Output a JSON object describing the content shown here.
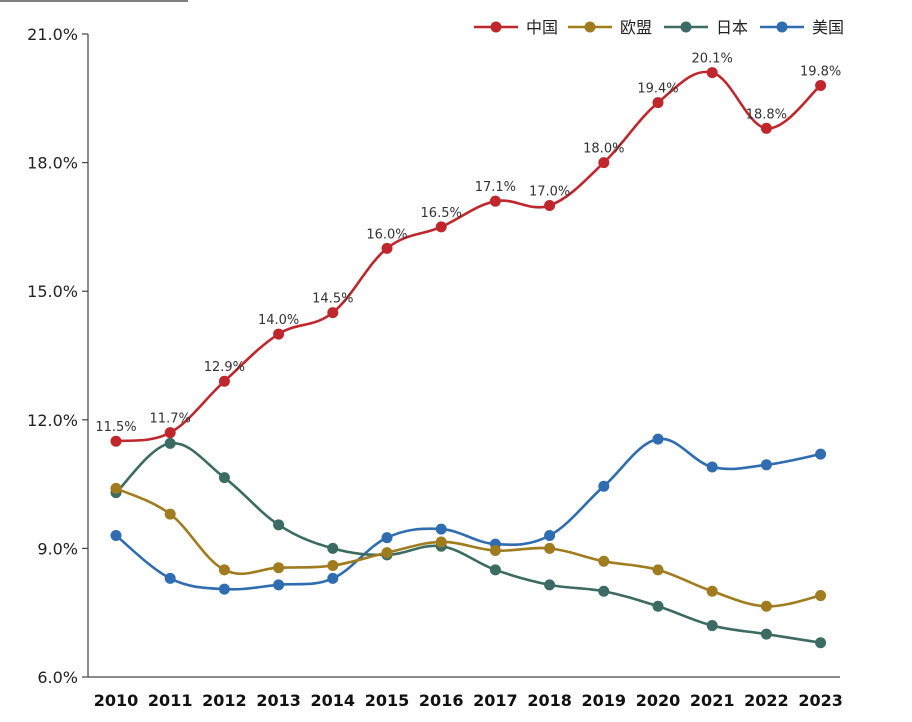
{
  "chart_data": {
    "type": "line",
    "title": "",
    "xlabel": "",
    "ylabel": "",
    "x": [
      "2010",
      "2011",
      "2012",
      "2013",
      "2014",
      "2015",
      "2016",
      "2017",
      "2018",
      "2019",
      "2020",
      "2021",
      "2022",
      "2023"
    ],
    "ylim": [
      6.0,
      21.0
    ],
    "y_ticks": [
      "6.0%",
      "9.0%",
      "12.0%",
      "15.0%",
      "18.0%",
      "21.0%"
    ],
    "y_tick_values": [
      6,
      9,
      12,
      15,
      18,
      21
    ],
    "grid": false,
    "legend_position": "top-right",
    "series": [
      {
        "name": "中国",
        "color": "#c0272d",
        "values": [
          11.5,
          11.7,
          12.9,
          14.0,
          14.5,
          16.0,
          16.5,
          17.1,
          17.0,
          18.0,
          19.4,
          20.1,
          18.8,
          19.8
        ],
        "labels": [
          "11.5%",
          "11.7%",
          "12.9%",
          "14.0%",
          "14.5%",
          "16.0%",
          "16.5%",
          "17.1%",
          "17.0%",
          "18.0%",
          "19.4%",
          "20.1%",
          "18.8%",
          "19.8%"
        ]
      },
      {
        "name": "欧盟",
        "color": "#a07c1e",
        "values": [
          10.4,
          9.8,
          8.5,
          8.55,
          8.6,
          8.9,
          9.15,
          8.95,
          9.0,
          8.7,
          8.5,
          8.0,
          7.65,
          7.9
        ],
        "labels": []
      },
      {
        "name": "日本",
        "color": "#3c6b63",
        "values": [
          10.3,
          11.45,
          10.65,
          9.55,
          9.0,
          8.85,
          9.05,
          8.5,
          8.15,
          8.0,
          7.65,
          7.2,
          7.0,
          6.8
        ],
        "labels": []
      },
      {
        "name": "美国",
        "color": "#2f6db0",
        "values": [
          9.3,
          8.3,
          8.05,
          8.15,
          8.3,
          9.25,
          9.45,
          9.1,
          9.3,
          10.45,
          11.55,
          10.9,
          10.95,
          11.2
        ],
        "labels": []
      }
    ]
  }
}
